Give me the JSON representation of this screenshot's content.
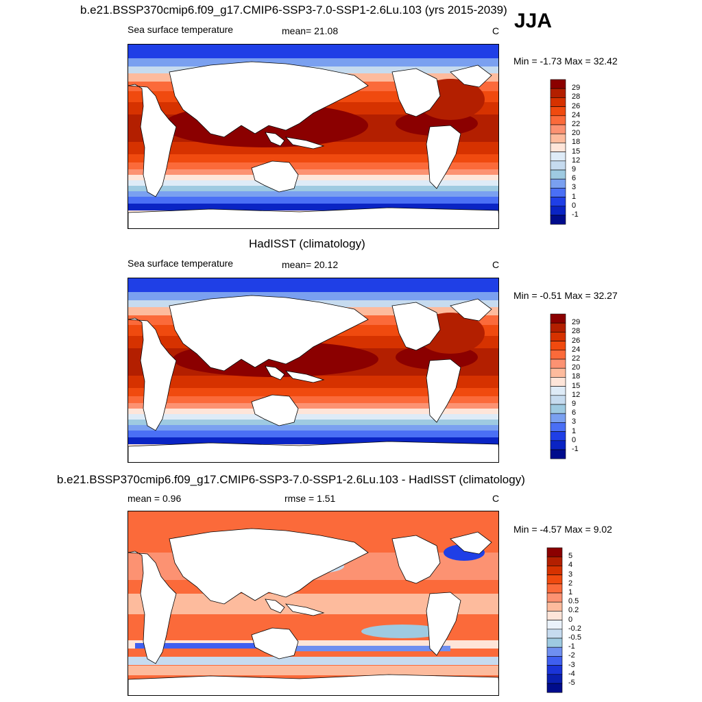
{
  "season_label": "JJA",
  "panels": [
    {
      "title": "b.e21.BSSP370cmip6.f09_g17.CMIP6-SSP3-7.0-SSP1-2.6Lu.103 (yrs 2015-2039)",
      "left_label": "Sea surface temperature",
      "center_label": "mean=  21.08",
      "units": "C",
      "minmax": "Min =  -1.73 Max =  32.42",
      "colorbar_labels": [
        "29",
        "28",
        "26",
        "24",
        "22",
        "20",
        "18",
        "15",
        "12",
        "9",
        "6",
        "3",
        "1",
        "0",
        "-1"
      ],
      "colorbar_colors": [
        "#8b0000",
        "#b31f00",
        "#d63200",
        "#f04a0f",
        "#fb6a3a",
        "#fc9272",
        "#fdbb9d",
        "#fee5d9",
        "#deebf7",
        "#c6dbef",
        "#9ecae1",
        "#7aa0f0",
        "#4a6ff5",
        "#1f3fe6",
        "#0a24c4",
        "#000c8c"
      ]
    },
    {
      "title": "HadISST (climatology)",
      "left_label": "Sea surface temperature",
      "center_label": "mean=  20.12",
      "units": "C",
      "minmax": "Min =  -0.51 Max =  32.27",
      "colorbar_labels": [
        "29",
        "28",
        "26",
        "24",
        "22",
        "20",
        "18",
        "15",
        "12",
        "9",
        "6",
        "3",
        "1",
        "0",
        "-1"
      ],
      "colorbar_colors": [
        "#8b0000",
        "#b31f00",
        "#d63200",
        "#f04a0f",
        "#fb6a3a",
        "#fc9272",
        "#fdbb9d",
        "#fee5d9",
        "#deebf7",
        "#c6dbef",
        "#9ecae1",
        "#7aa0f0",
        "#4a6ff5",
        "#1f3fe6",
        "#0a24c4",
        "#000c8c"
      ]
    },
    {
      "title": "b.e21.BSSP370cmip6.f09_g17.CMIP6-SSP3-7.0-SSP1-2.6Lu.103 - HadISST (climatology)",
      "left_label": "mean =   0.96",
      "center_label": "rmse =   1.51",
      "units": "C",
      "minmax": "Min =  -4.57 Max =   9.02",
      "colorbar_labels": [
        "5",
        "4",
        "3",
        "2",
        "1",
        "0.5",
        "0.2",
        "0",
        "-0.2",
        "-0.5",
        "-1",
        "-2",
        "-3",
        "-4",
        "-5"
      ],
      "colorbar_colors": [
        "#8b0000",
        "#b31f00",
        "#d63200",
        "#f04a0f",
        "#fb6a3a",
        "#fc9272",
        "#fdbb9d",
        "#fee5d9",
        "#eaf2fb",
        "#c6dbef",
        "#9ecae1",
        "#6f8ff0",
        "#3f5ff0",
        "#1a34d8",
        "#0a1fb0",
        "#000c8c"
      ]
    }
  ],
  "chart_data": [
    {
      "type": "heatmap",
      "title": "b.e21.BSSP370cmip6.f09_g17.CMIP6-SSP3-7.0-SSP1-2.6Lu.103 (yrs 2015-2039)",
      "variable": "Sea surface temperature",
      "season": "JJA",
      "units": "C",
      "mean": 21.08,
      "min": -1.73,
      "max": 32.42,
      "contour_levels": [
        -1,
        0,
        1,
        3,
        6,
        9,
        12,
        15,
        18,
        20,
        22,
        24,
        26,
        28,
        29
      ]
    },
    {
      "type": "heatmap",
      "title": "HadISST (climatology)",
      "variable": "Sea surface temperature",
      "season": "JJA",
      "units": "C",
      "mean": 20.12,
      "min": -0.51,
      "max": 32.27,
      "contour_levels": [
        -1,
        0,
        1,
        3,
        6,
        9,
        12,
        15,
        18,
        20,
        22,
        24,
        26,
        28,
        29
      ]
    },
    {
      "type": "heatmap",
      "title": "b.e21.BSSP370cmip6.f09_g17.CMIP6-SSP3-7.0-SSP1-2.6Lu.103 - HadISST (climatology)",
      "season": "JJA",
      "units": "C",
      "mean": 0.96,
      "rmse": 1.51,
      "min": -4.57,
      "max": 9.02,
      "contour_levels": [
        -5,
        -4,
        -3,
        -2,
        -1,
        -0.5,
        -0.2,
        0,
        0.2,
        0.5,
        1,
        2,
        3,
        4,
        5
      ]
    }
  ]
}
